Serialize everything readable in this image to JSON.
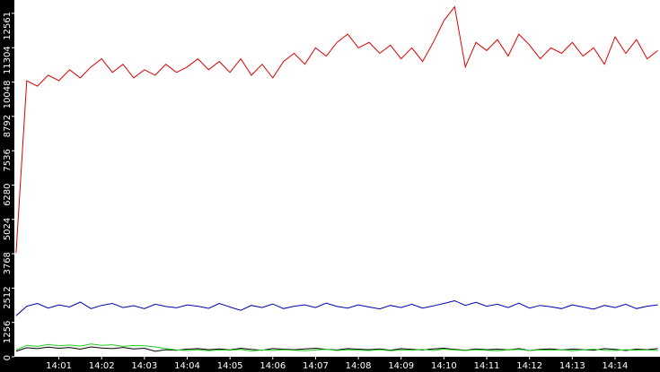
{
  "chart_data": {
    "type": "line",
    "x": [
      0,
      0.25,
      0.5,
      0.75,
      1,
      1.25,
      1.5,
      1.75,
      2,
      2.25,
      2.5,
      2.75,
      3,
      3.25,
      3.5,
      3.75,
      4,
      4.25,
      4.5,
      4.75,
      5,
      5.25,
      5.5,
      5.75,
      6,
      6.25,
      6.5,
      6.75,
      7,
      7.25,
      7.5,
      7.75,
      8,
      8.25,
      8.5,
      8.75,
      9,
      9.25,
      9.5,
      9.75,
      10,
      10.25,
      10.5,
      10.75,
      11,
      11.25,
      11.5,
      11.75,
      12,
      12.25,
      12.5,
      12.75,
      13,
      13.25,
      13.5,
      13.75,
      14,
      14.25,
      14.5,
      14.75,
      15
    ],
    "series": [
      {
        "color": "#e00000",
        "values": [
          3800,
          10100,
          9900,
          10300,
          10100,
          10500,
          10200,
          10600,
          10900,
          10400,
          10700,
          10200,
          10500,
          10300,
          10700,
          10400,
          10600,
          10900,
          10500,
          10800,
          10400,
          10900,
          10300,
          10700,
          10200,
          10800,
          11100,
          10700,
          11300,
          11000,
          11500,
          11800,
          11300,
          11500,
          11100,
          11400,
          10900,
          11300,
          10800,
          11500,
          12300,
          12800,
          10600,
          11500,
          11200,
          11600,
          11000,
          11800,
          11400,
          10900,
          11300,
          11100,
          11500,
          11000,
          11300,
          10700,
          11700,
          11100,
          11600,
          10900,
          11200
        ]
      },
      {
        "color": "#0000b0",
        "values": [
          1500,
          1850,
          1950,
          1780,
          1900,
          1820,
          2000,
          1760,
          1880,
          1950,
          1800,
          1870,
          1760,
          1920,
          1840,
          1790,
          1900,
          1850,
          1770,
          1950,
          1820,
          1700,
          1880,
          1800,
          1930,
          1760,
          1850,
          1900,
          1800,
          1960,
          1840,
          1780,
          1900,
          1820,
          1750,
          1880,
          1800,
          1920,
          1780,
          1860,
          1950,
          2050,
          1880,
          1990,
          1850,
          1920,
          1800,
          1960,
          1780,
          1880,
          1830,
          1760,
          1900,
          1820,
          1740,
          1880,
          1800,
          1920,
          1760,
          1850,
          1900
        ]
      },
      {
        "color": "#20d020",
        "values": [
          250,
          420,
          380,
          450,
          400,
          430,
          390,
          470,
          420,
          440,
          380,
          410,
          400,
          360,
          300,
          250,
          230,
          260,
          220,
          250,
          240,
          270,
          210,
          250,
          230,
          260,
          240,
          220,
          250,
          270,
          230,
          260,
          240,
          230,
          260,
          220,
          250,
          240,
          270,
          230,
          280,
          250,
          230,
          260,
          240,
          220,
          250,
          270,
          230,
          250,
          240,
          260,
          220,
          250,
          280,
          240,
          230,
          260,
          240,
          250,
          230
        ]
      },
      {
        "color": "#000000",
        "values": [
          200,
          330,
          300,
          350,
          310,
          340,
          280,
          360,
          320,
          300,
          340,
          290,
          310,
          200,
          260,
          240,
          280,
          300,
          260,
          290,
          250,
          310,
          270,
          240,
          300,
          280,
          260,
          290,
          310,
          270,
          250,
          300,
          280,
          260,
          290,
          240,
          300,
          270,
          250,
          290,
          310,
          270,
          240,
          290,
          260,
          280,
          250,
          300,
          230,
          270,
          290,
          250,
          280,
          260,
          240,
          300,
          270,
          230,
          280,
          260,
          300
        ]
      }
    ],
    "xlim": [
      -0.04,
      15.05
    ],
    "xticks": [
      {
        "value": 1,
        "label": "14:01"
      },
      {
        "value": 2,
        "label": "14:02"
      },
      {
        "value": 3,
        "label": "14:03"
      },
      {
        "value": 4,
        "label": "14:04"
      },
      {
        "value": 5,
        "label": "14:05"
      },
      {
        "value": 6,
        "label": "14:06"
      },
      {
        "value": 7,
        "label": "14:07"
      },
      {
        "value": 8,
        "label": "14:08"
      },
      {
        "value": 9,
        "label": "14:09"
      },
      {
        "value": 10,
        "label": "14:10"
      },
      {
        "value": 11,
        "label": "14:11"
      },
      {
        "value": 12,
        "label": "14:12"
      },
      {
        "value": 13,
        "label": "14:13"
      },
      {
        "value": 14,
        "label": "14:14"
      }
    ],
    "ylim": [
      0,
      13050
    ],
    "yticks": [
      0,
      1256,
      2512,
      3768,
      5024,
      6280,
      7536,
      8792,
      10048,
      11304,
      12561
    ],
    "axis_color": "#000000"
  }
}
